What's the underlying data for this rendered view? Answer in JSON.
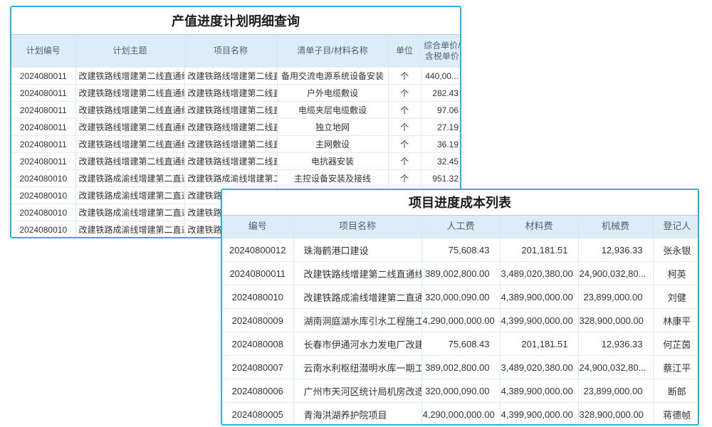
{
  "colors": {
    "panel_border": "#29b1e2",
    "header_bg": "#ddedf8",
    "header_text": "#4d6373",
    "link_text": "#4aa3e6",
    "body_text": "#333333"
  },
  "table1": {
    "title": "产值进度计划明细查询",
    "columns": [
      "计划编号",
      "计划主题",
      "项目名称",
      "清单子目/材料名称",
      "单位",
      "综合单价/含税单价"
    ],
    "rows": [
      [
        "2024080011",
        "改建铁路线增建第二线直通线",
        "改建铁路线增建第二线直通",
        "备用交流电源系统设备安装",
        "个",
        "440,00..."
      ],
      [
        "2024080011",
        "改建铁路线增建第二线直通线",
        "改建铁路线增建第二线直通",
        "户外电缆敷设",
        "个",
        "282.43"
      ],
      [
        "2024080011",
        "改建铁路线增建第二线直通线",
        "改建铁路线增建第二线直通",
        "电缆夹层电缆敷设",
        "个",
        "97.06"
      ],
      [
        "2024080011",
        "改建铁路线增建第二线直通线",
        "改建铁路线增建第二线直通",
        "独立地网",
        "个",
        "27.19"
      ],
      [
        "2024080011",
        "改建铁路线增建第二线直通线",
        "改建铁路线增建第二线直通",
        "主网敷设",
        "个",
        "36.19"
      ],
      [
        "2024080011",
        "改建铁路线增建第二线直通线",
        "改建铁路线增建第二线直通",
        "电抗器安装",
        "个",
        "32.45"
      ],
      [
        "2024080010",
        "改建铁路成渝线增建第二直通",
        "改建铁路成渝线增建第二直",
        "主控设备安装及接线",
        "个",
        "951.32"
      ],
      [
        "2024080010",
        "改建铁路成渝线增建第二直通",
        "改建铁路成渝线增建第二直",
        "",
        "",
        ""
      ],
      [
        "2024080010",
        "改建铁路成渝线增建第二直通",
        "改建铁路成渝线增建第二直",
        "",
        "",
        ""
      ],
      [
        "2024080010",
        "改建铁路成渝线增建第二直通",
        "改建铁路成渝线增建第二直",
        "",
        "",
        ""
      ]
    ]
  },
  "table2": {
    "title": "项目进度成本列表",
    "columns": [
      "编号",
      "项目名称",
      "人工费",
      "材料费",
      "机械费",
      "登记人"
    ],
    "rows": [
      [
        "20240800012",
        "珠海鹤港口建设",
        "75,608.43",
        "201,181.51",
        "12,936.33",
        "张永银"
      ],
      [
        "20240800011",
        "改建铁路线增建第二线直通线...",
        "389,002,800.00",
        "3,489,020,380.00",
        "24,900,032,80...",
        "柯英"
      ],
      [
        "2024080010",
        "改建铁路成渝线增建第二直通...",
        "320,000,090.00",
        "4,389,900,000.00",
        "23,899,000.00",
        "刘健"
      ],
      [
        "2024080009",
        "湖南洞庭湖水库引水工程施工...",
        "4,290,000,000.00",
        "4,399,900,000.00",
        "328,900,000.00",
        "林康平"
      ],
      [
        "2024080008",
        "长春市伊通河水力发电厂改建...",
        "75,608.43",
        "201,181.51",
        "12,936.33",
        "何芷茵"
      ],
      [
        "2024080007",
        "云南水利枢纽潜明水库一期工...",
        "389,002,800.00",
        "3,489,020,380.00",
        "24,900,032,80...",
        "蔡江平"
      ],
      [
        "2024080006",
        "广州市天河区统计局机房改造...",
        "320,000,090.00",
        "4,389,900,000.00",
        "23,899,000.00",
        "断郎"
      ],
      [
        "2024080005",
        "青海洪湖养护院项目",
        "4,290,000,000.00",
        "4,399,900,000.00",
        "328,900,000.00",
        "蒋德帧"
      ]
    ]
  }
}
